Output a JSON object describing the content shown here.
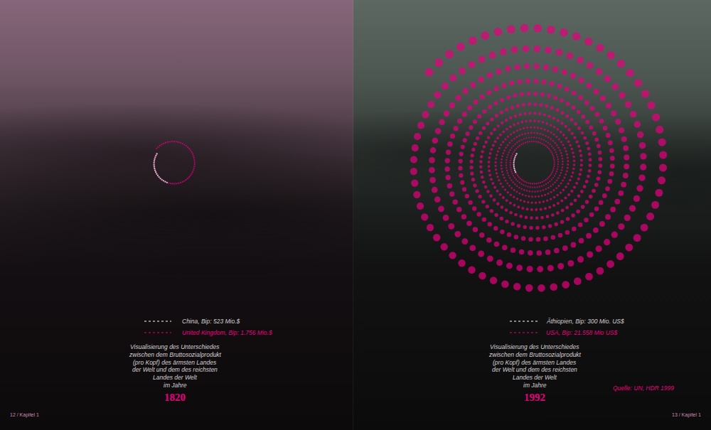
{
  "chart_data": [
    {
      "type": "dot_spiral",
      "title": "1820",
      "color": "#e6007e",
      "subtitle": [
        "Visualisierung des Unterschiedes",
        "zwischen dem Bruttosozialprodukt",
        "(pro Kopf) des ärmsten Landes",
        "der Welt und dem des reichsten",
        "Landes der Welt",
        "im Jahre"
      ],
      "series": [
        {
          "name": "China, Bip: 523 Mio.$",
          "color": "#ffffff",
          "values": [
            523
          ]
        },
        {
          "name": "United Kingdom, Bip: 1.756 Mio.$",
          "color": "#e6007e",
          "values": [
            1756
          ]
        }
      ]
    },
    {
      "type": "dot_spiral",
      "title": "1992",
      "color": "#e6007e",
      "subtitle": [
        "Visualisierung des Unterschiedes",
        "zwischen dem Bruttosozialprodukt",
        "(pro Kopf) des ärmsten Landes",
        "der Welt und dem des reichsten",
        "Landes der Welt",
        "im Jahre"
      ],
      "annotations": [
        "Quelle: UN, HDR 1999"
      ],
      "series": [
        {
          "name": "Äthiopien, Bip: 300 Mio. US$",
          "color": "#ffffff",
          "values": [
            300
          ]
        },
        {
          "name": "USA, Bip: 21.558 Mio US$",
          "color": "#e6007e",
          "values": [
            21558
          ]
        }
      ]
    }
  ],
  "footer": [
    "12 / Kapitel 1",
    "13 / Kapitel 1"
  ]
}
